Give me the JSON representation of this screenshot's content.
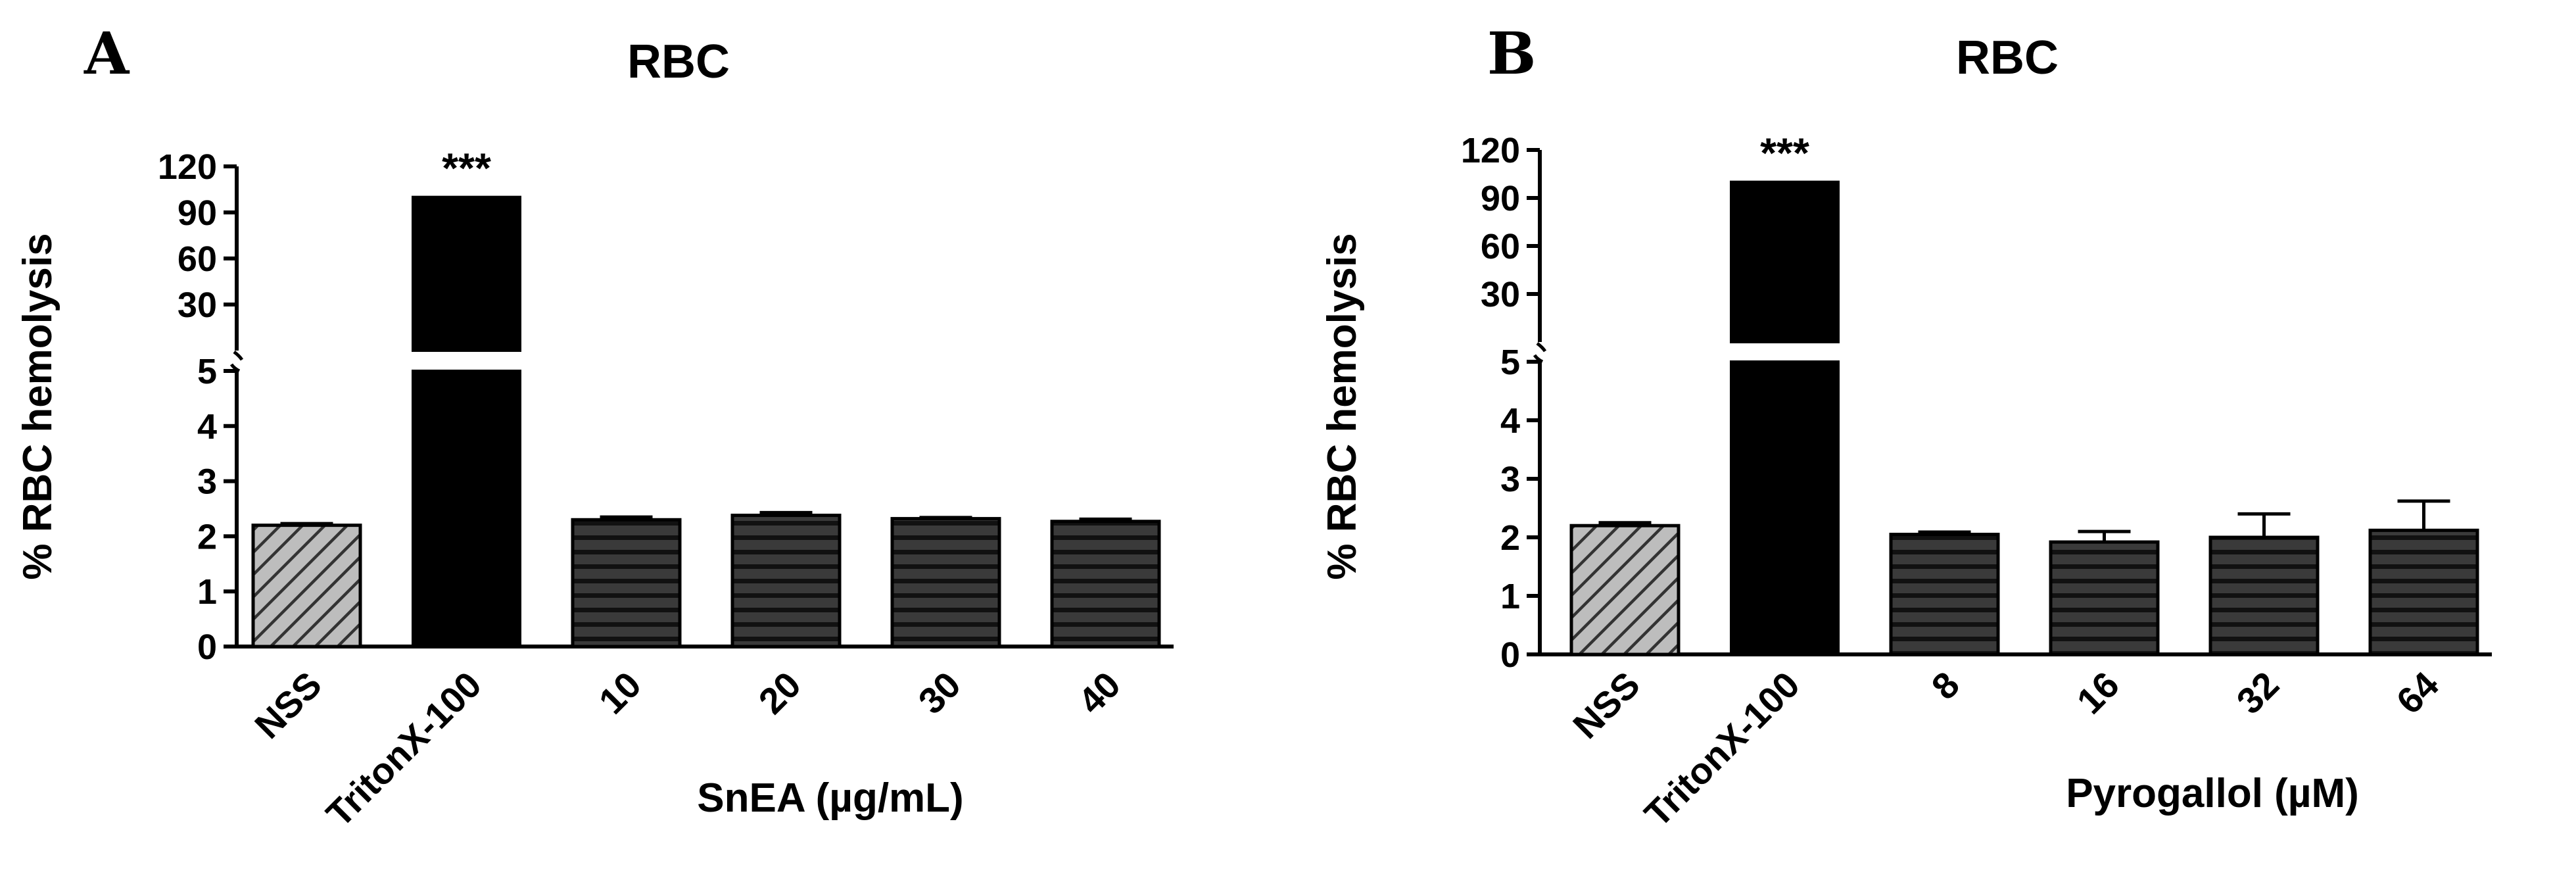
{
  "colors": {
    "axis": "#000000",
    "nss_fill": "#bdbdbd",
    "nss_hatch": "#333333",
    "triton_fill": "#000000",
    "treatment_fill": "#3a3a3a",
    "treatment_stripe": "#111111"
  },
  "chart_data": [
    {
      "type": "bar",
      "panel": "A",
      "title": "RBC",
      "xlabel": "SnEA (µg/mL)",
      "ylabel": "% RBC hemolysis",
      "categories": [
        "NSS",
        "TritonX-100",
        "10",
        "20",
        "30",
        "40"
      ],
      "values": [
        2.2,
        100,
        2.3,
        2.38,
        2.32,
        2.27
      ],
      "errors": [
        0.03,
        0,
        0.05,
        0.05,
        0.02,
        0.04
      ],
      "significance": [
        "",
        "***",
        "",
        "",
        "",
        ""
      ],
      "y_axis_broken": true,
      "ylim_lower": [
        0,
        5
      ],
      "ylim_upper": [
        0,
        120
      ],
      "yticks_lower": [
        "0",
        "1",
        "2",
        "3",
        "4",
        "5"
      ],
      "yticks_upper": [
        "30",
        "60",
        "90",
        "120"
      ],
      "grid": false,
      "legend": "none"
    },
    {
      "type": "bar",
      "panel": "B",
      "title": "RBC",
      "xlabel": "Pyrogallol (µM)",
      "ylabel": "% RBC hemolysis",
      "categories": [
        "NSS",
        "TritonX-100",
        "8",
        "16",
        "32",
        "64"
      ],
      "values": [
        2.2,
        100,
        2.05,
        1.92,
        2.0,
        2.12
      ],
      "errors": [
        0.05,
        0,
        0.04,
        0.18,
        0.4,
        0.5
      ],
      "significance": [
        "",
        "***",
        "",
        "",
        "",
        ""
      ],
      "y_axis_broken": true,
      "ylim_lower": [
        0,
        5
      ],
      "ylim_upper": [
        0,
        120
      ],
      "yticks_lower": [
        "0",
        "1",
        "2",
        "3",
        "4",
        "5"
      ],
      "yticks_upper": [
        "30",
        "60",
        "90",
        "120"
      ],
      "grid": false,
      "legend": "none"
    }
  ]
}
